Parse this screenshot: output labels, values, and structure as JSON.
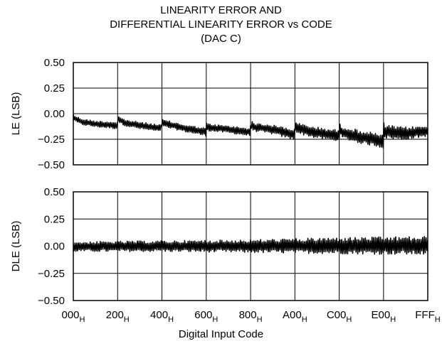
{
  "chart_data": {
    "type": "line",
    "title_lines": [
      "LINEARITY ERROR AND",
      "DIFFERENTIAL LINEARITY ERROR vs CODE",
      "(DAC C)"
    ],
    "xlabel": "Digital Input Code",
    "x_ticks": [
      {
        "base": "000",
        "sub": "H",
        "value": 0
      },
      {
        "base": "200",
        "sub": "H",
        "value": 512
      },
      {
        "base": "400",
        "sub": "H",
        "value": 1024
      },
      {
        "base": "600",
        "sub": "H",
        "value": 1536
      },
      {
        "base": "800",
        "sub": "H",
        "value": 2048
      },
      {
        "base": "A00",
        "sub": "H",
        "value": 2560
      },
      {
        "base": "C00",
        "sub": "H",
        "value": 3072
      },
      {
        "base": "E00",
        "sub": "H",
        "value": 3584
      },
      {
        "base": "FFF",
        "sub": "H",
        "value": 4095
      }
    ],
    "xlim": [
      0,
      4095
    ],
    "grid": true,
    "panels": [
      {
        "ylabel": "LE (LSB)",
        "ylim": [
          -0.5,
          0.5
        ],
        "y_ticks": [
          "0.50",
          "0.25",
          "0.00",
          "−0.25",
          "−0.50"
        ],
        "y_tick_values": [
          0.5,
          0.25,
          0.0,
          -0.25,
          -0.5
        ],
        "series": [
          {
            "color": "#000000",
            "style": "dense noisy band (approx. envelope shown)",
            "x": [
              0,
              20,
              100,
              256,
              511,
              512,
              530,
              600,
              768,
              1023,
              1024,
              1040,
              1200,
              1300,
              1535,
              1536,
              1560,
              1800,
              2047,
              2048,
              2080,
              2300,
              2559,
              2560,
              2580,
              2800,
              3071,
              3072,
              3100,
              3300,
              3500,
              3583,
              3584,
              3600,
              3800,
              4095
            ],
            "upper": [
              0.0,
              -0.02,
              -0.05,
              -0.07,
              -0.08,
              -0.01,
              -0.03,
              -0.06,
              -0.08,
              -0.11,
              -0.04,
              -0.06,
              -0.09,
              -0.11,
              -0.14,
              -0.08,
              -0.1,
              -0.12,
              -0.14,
              -0.06,
              -0.09,
              -0.11,
              -0.15,
              -0.07,
              -0.09,
              -0.13,
              -0.16,
              -0.09,
              -0.12,
              -0.16,
              -0.19,
              -0.21,
              -0.08,
              -0.11,
              -0.13,
              -0.12
            ],
            "lower": [
              -0.05,
              -0.08,
              -0.11,
              -0.13,
              -0.15,
              -0.07,
              -0.09,
              -0.12,
              -0.15,
              -0.18,
              -0.11,
              -0.13,
              -0.16,
              -0.18,
              -0.22,
              -0.15,
              -0.17,
              -0.19,
              -0.22,
              -0.14,
              -0.17,
              -0.2,
              -0.26,
              -0.16,
              -0.19,
              -0.24,
              -0.27,
              -0.2,
              -0.24,
              -0.29,
              -0.32,
              -0.34,
              -0.2,
              -0.24,
              -0.26,
              -0.22
            ]
          }
        ]
      },
      {
        "ylabel": "DLE (LSB)",
        "ylim": [
          -0.5,
          0.5
        ],
        "y_ticks": [
          "0.50",
          "0.25",
          "0.00",
          "−0.25",
          "−0.50"
        ],
        "y_tick_values": [
          0.5,
          0.25,
          0.0,
          -0.25,
          -0.5
        ],
        "series": [
          {
            "color": "#000000",
            "style": "dense noisy band (approx. envelope shown)",
            "x": [
              0,
              1024,
              2048,
              3072,
              4095
            ],
            "upper": [
              0.04,
              0.05,
              0.06,
              0.08,
              0.09
            ],
            "lower": [
              -0.05,
              -0.05,
              -0.06,
              -0.07,
              -0.08
            ]
          }
        ]
      }
    ]
  }
}
